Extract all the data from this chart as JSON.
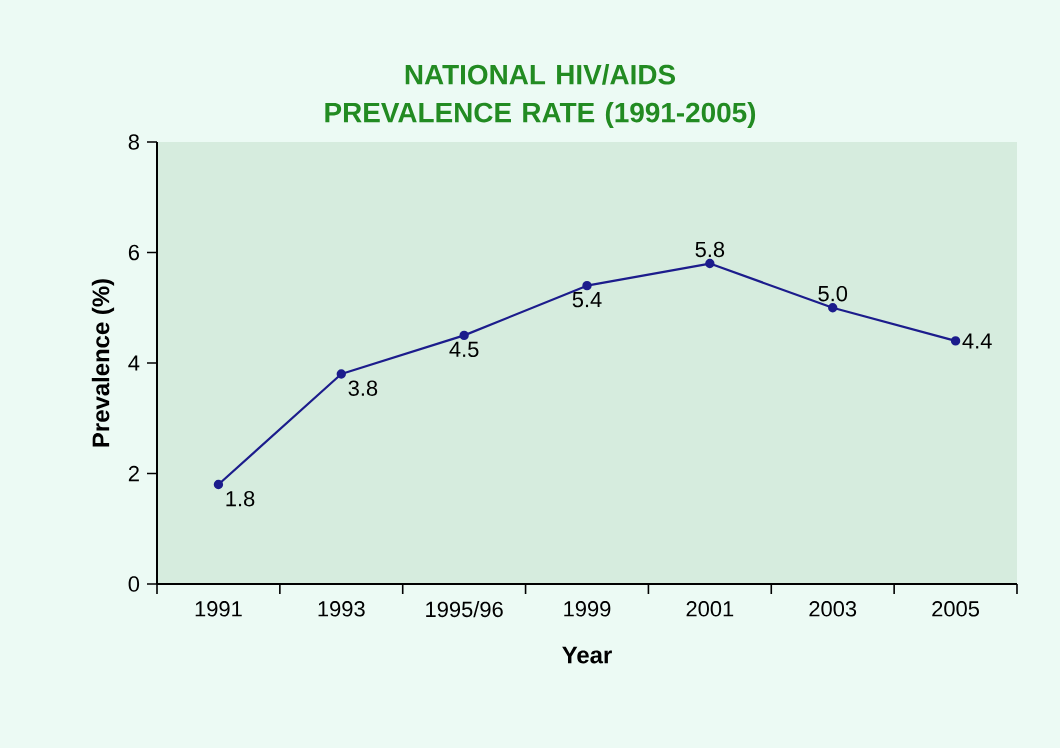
{
  "chart_data": {
    "type": "line",
    "title": "NATIONAL HIV/AIDS PREVALENCE RATE (1991-2005)",
    "xlabel": "Year",
    "ylabel": "Prevalence (%)",
    "categories": [
      "1991",
      "1993",
      "1995/96",
      "1999",
      "2001",
      "2003",
      "2005"
    ],
    "series": [
      {
        "color": "#1c1c8c",
        "values": [
          1.8,
          3.8,
          4.5,
          5.4,
          5.8,
          5.0,
          4.4
        ],
        "value_labels": [
          "1.8",
          "3.8",
          "4.5",
          "5.4",
          "5.8",
          "5.0",
          "4.4"
        ]
      }
    ],
    "ylim": [
      0,
      8
    ],
    "yticks": [
      0,
      2,
      4,
      6,
      8
    ],
    "marker": "circle",
    "line_style": "solid"
  }
}
